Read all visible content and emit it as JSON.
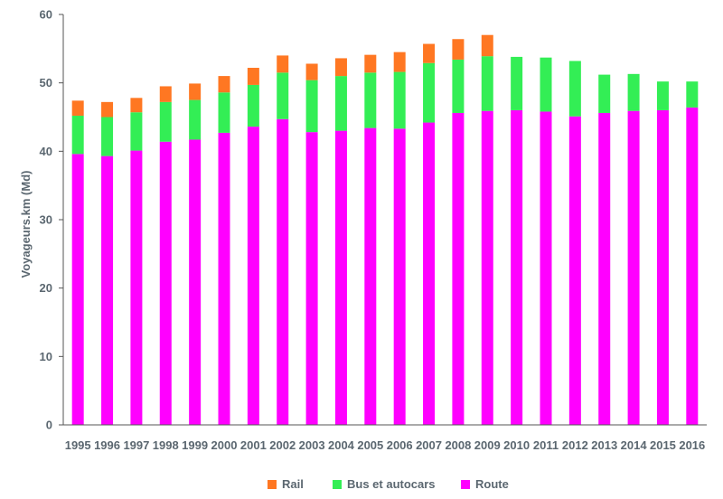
{
  "chart_data": {
    "type": "bar",
    "stacked": true,
    "title": "",
    "xlabel": "",
    "ylabel": "Voyageurs.km (Md)",
    "ylim": [
      0,
      60
    ],
    "yticks": [
      0,
      10,
      20,
      30,
      40,
      50,
      60
    ],
    "grid": false,
    "legend_placement": "bottom",
    "categories": [
      "1995",
      "1996",
      "1997",
      "1998",
      "1999",
      "2000",
      "2001",
      "2002",
      "2003",
      "2004",
      "2005",
      "2006",
      "2007",
      "2008",
      "2009",
      "2010",
      "2011",
      "2012",
      "2013",
      "2014",
      "2015",
      "2016"
    ],
    "series": [
      {
        "name": "Route",
        "color": "#ff00ff",
        "values": [
          39.6,
          39.3,
          40.1,
          41.4,
          41.7,
          42.7,
          43.6,
          44.7,
          42.8,
          43.0,
          43.4,
          43.3,
          44.2,
          45.6,
          45.9,
          46.0,
          45.8,
          45.1,
          45.6,
          45.9,
          46.0,
          46.4
        ]
      },
      {
        "name": "Bus et autocars",
        "color": "#33ee55",
        "values": [
          5.6,
          5.7,
          5.6,
          5.8,
          5.8,
          5.9,
          6.1,
          6.8,
          7.6,
          8.0,
          8.1,
          8.3,
          8.7,
          7.8,
          8.0,
          7.8,
          7.9,
          8.1,
          5.6,
          5.4,
          4.2,
          3.8
        ]
      },
      {
        "name": "Rail",
        "color": "#ff7722",
        "values": [
          2.2,
          2.2,
          2.1,
          2.3,
          2.4,
          2.4,
          2.5,
          2.5,
          2.4,
          2.6,
          2.6,
          2.9,
          2.8,
          3.0,
          3.1,
          0,
          0,
          0,
          0,
          0,
          0,
          0
        ]
      }
    ],
    "legend_order": [
      "Rail",
      "Bus et autocars",
      "Route"
    ]
  }
}
